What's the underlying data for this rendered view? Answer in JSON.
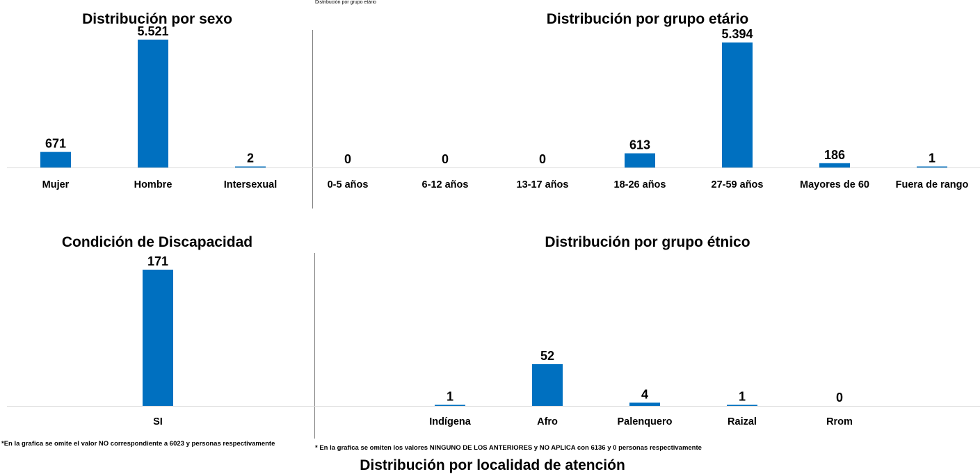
{
  "top_caption": "Distribución por grupo etário",
  "footnote_left": "*En la grafica se omite el valor NO correspondiente a 6023 y   personas respectivamente",
  "footnote_right": "* En la grafica se omiten los valores NINGUNO DE LOS ANTERIORES y  NO APLICA con 6136 y 0 personas respectivamente",
  "bottom_title": "Distribución por localidad de atención",
  "colors": {
    "bar": "#0070C0",
    "axis": "#D9D9D9",
    "divider": "#808080"
  },
  "chart_data": [
    {
      "type": "bar",
      "title": "Distribución por sexo",
      "categories": [
        "Mujer",
        "Hombre",
        "Intersexual"
      ],
      "values": [
        671,
        5521,
        2
      ],
      "labels": [
        "671",
        "5.521",
        "2"
      ]
    },
    {
      "type": "bar",
      "title": "Distribución por grupo etário",
      "categories": [
        "0-5 años",
        "6-12 años",
        "13-17 años",
        "18-26 años",
        "27-59 años",
        "Mayores de 60",
        "Fuera de rango"
      ],
      "values": [
        0,
        0,
        0,
        613,
        5394,
        186,
        1
      ],
      "labels": [
        "0",
        "0",
        "0",
        "613",
        "5.394",
        "186",
        "1"
      ]
    },
    {
      "type": "bar",
      "title": "Condición de Discapacidad",
      "categories": [
        "SI"
      ],
      "values": [
        171
      ],
      "labels": [
        "171"
      ]
    },
    {
      "type": "bar",
      "title": "Distribución por grupo étnico",
      "categories": [
        "Indígena",
        "Afro",
        "Palenquero",
        "Raizal",
        "Rrom"
      ],
      "values": [
        1,
        52,
        4,
        1,
        0
      ],
      "labels": [
        "1",
        "52",
        "4",
        "1",
        "0"
      ]
    }
  ]
}
